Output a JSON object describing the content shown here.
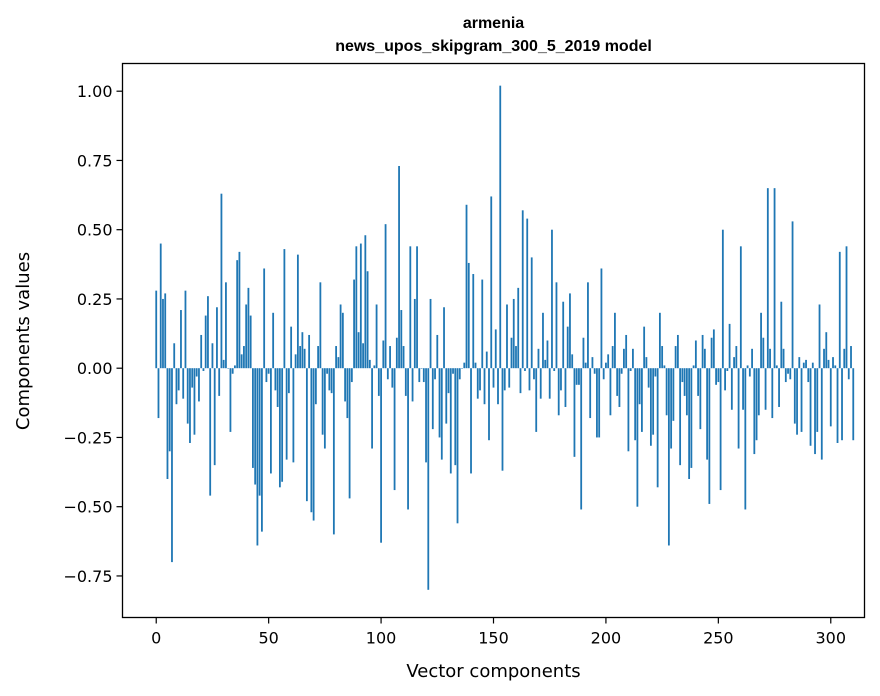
{
  "chart_data": {
    "type": "bar",
    "title_line1": "armenia",
    "title_line2": "news_upos_skipgram_300_5_2019 model",
    "xlabel": "Vector components",
    "ylabel": "Components values",
    "xlim": [
      -15,
      315
    ],
    "ylim": [
      -0.9,
      1.1
    ],
    "xticks": [
      0,
      50,
      100,
      150,
      200,
      250,
      300
    ],
    "yticks": [
      -0.75,
      -0.5,
      -0.25,
      0.0,
      0.25,
      0.5,
      0.75,
      1.0
    ],
    "ytick_labels": [
      "−0.75",
      "−0.50",
      "−0.25",
      "0.00",
      "0.25",
      "0.50",
      "0.75",
      "1.00"
    ],
    "bar_color": "#1f77b4",
    "values": [
      0.28,
      -0.18,
      0.45,
      0.25,
      0.27,
      -0.4,
      -0.3,
      -0.7,
      0.09,
      -0.13,
      -0.08,
      0.21,
      -0.11,
      0.28,
      -0.2,
      -0.27,
      -0.07,
      -0.24,
      -0.03,
      -0.12,
      0.12,
      -0.01,
      0.19,
      0.26,
      -0.46,
      0.09,
      -0.35,
      0.22,
      -0.1,
      0.63,
      0.03,
      0.31,
      0.0,
      -0.23,
      -0.02,
      0.01,
      0.39,
      0.42,
      0.05,
      0.08,
      0.23,
      0.29,
      0.19,
      -0.36,
      -0.42,
      -0.64,
      -0.46,
      -0.59,
      0.36,
      -0.05,
      -0.02,
      -0.38,
      0.2,
      -0.08,
      -0.14,
      -0.43,
      -0.41,
      0.43,
      -0.33,
      -0.09,
      0.15,
      -0.34,
      0.05,
      0.41,
      0.08,
      0.13,
      0.07,
      -0.48,
      0.12,
      -0.52,
      -0.55,
      -0.13,
      0.08,
      0.31,
      -0.24,
      -0.29,
      -0.02,
      -0.08,
      -0.09,
      -0.6,
      0.08,
      0.04,
      0.23,
      0.2,
      -0.12,
      -0.18,
      -0.47,
      -0.05,
      0.32,
      0.44,
      0.13,
      0.45,
      0.09,
      0.48,
      0.35,
      0.03,
      -0.29,
      0.01,
      0.23,
      -0.1,
      -0.63,
      0.1,
      0.52,
      -0.04,
      0.08,
      -0.07,
      -0.44,
      0.11,
      0.73,
      0.21,
      0.08,
      -0.1,
      -0.51,
      0.44,
      -0.12,
      0.25,
      0.44,
      -0.05,
      0.0,
      -0.05,
      -0.34,
      -0.8,
      0.25,
      -0.22,
      -0.04,
      0.12,
      -0.25,
      -0.33,
      0.22,
      -0.2,
      -0.09,
      -0.38,
      -0.02,
      -0.35,
      -0.56,
      -0.04,
      0.0,
      0.02,
      0.59,
      0.38,
      -0.38,
      0.34,
      0.02,
      -0.11,
      -0.08,
      0.32,
      -0.13,
      0.06,
      -0.26,
      0.62,
      -0.07,
      0.14,
      -0.13,
      1.02,
      -0.37,
      -0.08,
      0.23,
      -0.07,
      0.11,
      0.25,
      0.08,
      0.29,
      -0.09,
      0.57,
      -0.01,
      0.54,
      -0.08,
      0.4,
      -0.04,
      -0.23,
      0.07,
      -0.11,
      0.2,
      0.03,
      0.1,
      -0.11,
      0.5,
      -0.01,
      0.31,
      -0.17,
      -0.08,
      0.24,
      -0.14,
      0.15,
      0.27,
      0.05,
      -0.32,
      -0.06,
      -0.06,
      -0.51,
      0.11,
      0.02,
      0.31,
      -0.18,
      0.04,
      -0.02,
      -0.25,
      -0.25,
      0.36,
      -0.04,
      0.02,
      0.05,
      -0.17,
      0.08,
      0.2,
      -0.1,
      -0.14,
      -0.02,
      0.07,
      0.12,
      -0.3,
      -0.01,
      0.07,
      -0.26,
      -0.5,
      -0.13,
      -0.23,
      0.15,
      0.04,
      -0.07,
      -0.28,
      -0.24,
      -0.03,
      -0.43,
      0.2,
      0.08,
      0.01,
      -0.17,
      -0.64,
      -0.29,
      -0.19,
      0.08,
      0.12,
      -0.35,
      -0.05,
      -0.1,
      -0.17,
      -0.4,
      -0.36,
      0.01,
      0.1,
      -0.1,
      -0.22,
      0.12,
      0.07,
      -0.33,
      -0.49,
      0.11,
      0.14,
      -0.06,
      -0.05,
      -0.44,
      0.5,
      -0.08,
      -0.01,
      0.16,
      -0.15,
      0.04,
      0.08,
      -0.29,
      0.44,
      -0.15,
      -0.51,
      0.01,
      -0.03,
      0.07,
      -0.31,
      -0.26,
      -0.17,
      0.2,
      0.11,
      -0.15,
      0.65,
      0.07,
      -0.18,
      0.65,
      0.01,
      -0.14,
      0.24,
      0.07,
      -0.05,
      -0.02,
      -0.04,
      0.53,
      -0.2,
      -0.24,
      0.04,
      -0.23,
      0.02,
      0.03,
      -0.05,
      -0.28,
      0.02,
      -0.31,
      -0.23,
      0.23,
      -0.33,
      0.07,
      0.13,
      0.03,
      -0.21,
      0.04,
      0.01,
      -0.27,
      0.42,
      -0.26,
      0.07,
      0.44,
      -0.04,
      0.08,
      -0.26
    ]
  }
}
